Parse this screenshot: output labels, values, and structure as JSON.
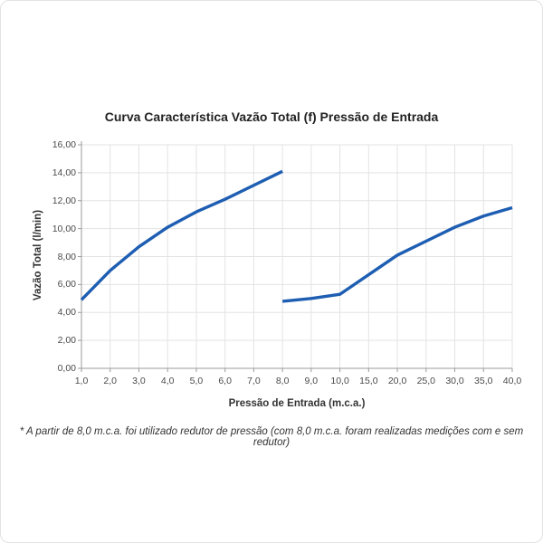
{
  "chart": {
    "title": "Curva Característica Vazão Total (f) Pressão de Entrada",
    "ylabel": "Vazão Total (l/min)",
    "xlabel": "Pressão de Entrada (m.c.a.)",
    "footnote": "* A partir de 8,0 m.c.a. foi utilizado redutor de pressão (com 8,0 m.c.a. foram realizadas medições com e sem redutor)"
  },
  "chart_data": {
    "type": "line",
    "title": "Curva Característica Vazão Total (f) Pressão de Entrada",
    "xlabel": "Pressão de Entrada (m.c.a.)",
    "ylabel": "Vazão Total (l/min)",
    "categories": [
      "1,0",
      "2,0",
      "3,0",
      "4,0",
      "5,0",
      "6,0",
      "7,0",
      "8,0",
      "9,0",
      "10,0",
      "15,0",
      "20,0",
      "25,0",
      "30,0",
      "35,0",
      "40,0"
    ],
    "y_tick_labels": [
      "0,00",
      "2,00",
      "4,00",
      "6,00",
      "8,00",
      "10,00",
      "12,00",
      "14,00",
      "16,00"
    ],
    "ylim": [
      0,
      16
    ],
    "y_step": 2,
    "grid": true,
    "legend_position": "none",
    "series": [
      {
        "name": "segmento-1-ate-8-mca",
        "category_indices": [
          0,
          1,
          2,
          3,
          4,
          5,
          6,
          7
        ],
        "x": [
          1.0,
          2.0,
          3.0,
          4.0,
          5.0,
          6.0,
          7.0,
          8.0
        ],
        "values": [
          4.9,
          7.0,
          8.7,
          10.1,
          11.2,
          12.1,
          13.1,
          14.1
        ]
      },
      {
        "name": "segmento-2-com-redutor",
        "category_indices": [
          7,
          8,
          9,
          10,
          11,
          12,
          13,
          14,
          15
        ],
        "x": [
          8.0,
          9.0,
          10.0,
          15.0,
          20.0,
          25.0,
          30.0,
          35.0,
          40.0
        ],
        "values": [
          4.8,
          5.0,
          5.3,
          6.7,
          8.1,
          9.1,
          10.1,
          10.9,
          11.5
        ]
      }
    ],
    "colors": {
      "line": "#1e5eb2",
      "grid": "#e3e3e3",
      "axis": "#9b9b9b",
      "tick_text": "#4a4a4a",
      "background": "#ffffff"
    }
  }
}
